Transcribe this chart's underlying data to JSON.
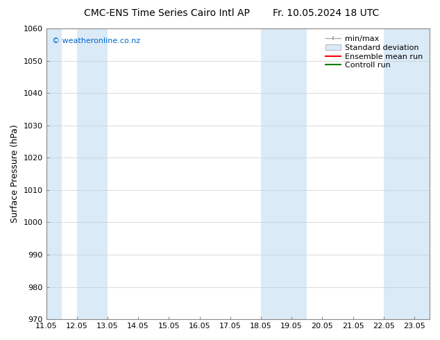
{
  "title_left": "CMC-ENS Time Series Cairo Intl AP",
  "title_right": "Fr. 10.05.2024 18 UTC",
  "ylabel": "Surface Pressure (hPa)",
  "xlabel": "",
  "ylim": [
    970,
    1060
  ],
  "yticks": [
    970,
    980,
    990,
    1000,
    1010,
    1020,
    1030,
    1040,
    1050,
    1060
  ],
  "xtick_labels": [
    "11.05",
    "12.05",
    "13.05",
    "14.05",
    "15.05",
    "16.05",
    "17.05",
    "18.05",
    "19.05",
    "20.05",
    "21.05",
    "22.05",
    "23.05"
  ],
  "x_positions": [
    11,
    12,
    13,
    14,
    15,
    16,
    17,
    18,
    19,
    20,
    21,
    22,
    23
  ],
  "x_min": 11.0,
  "x_max": 23.5,
  "shaded_bands": [
    {
      "x_start": 11.0,
      "x_end": 11.5,
      "color": "#daeaf7"
    },
    {
      "x_start": 12.0,
      "x_end": 13.0,
      "color": "#daeaf7"
    },
    {
      "x_start": 18.0,
      "x_end": 19.5,
      "color": "#daeaf7"
    },
    {
      "x_start": 22.0,
      "x_end": 23.5,
      "color": "#daeaf7"
    }
  ],
  "watermark": "© weatheronline.co.nz",
  "watermark_color": "#0066cc",
  "legend_entries": [
    {
      "label": "min/max",
      "type": "errorbar"
    },
    {
      "label": "Standard deviation",
      "type": "patch"
    },
    {
      "label": "Ensemble mean run",
      "type": "line",
      "color": "red"
    },
    {
      "label": "Controll run",
      "type": "line",
      "color": "green"
    }
  ],
  "bg_color": "#ffffff",
  "plot_bg_color": "#ffffff",
  "grid_color": "#cccccc",
  "title_fontsize": 10,
  "tick_fontsize": 8,
  "legend_fontsize": 8,
  "ylabel_fontsize": 9
}
